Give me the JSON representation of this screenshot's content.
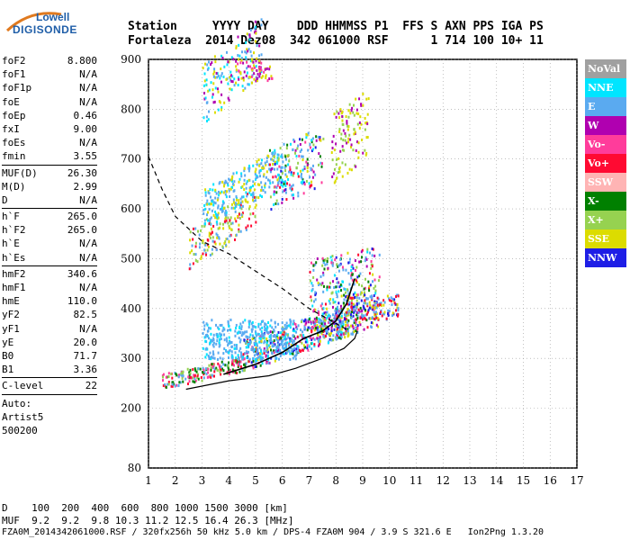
{
  "logo": {
    "line1": "Lowell",
    "line2": "DIGISONDE"
  },
  "header": {
    "row1": "Station     YYYY DAY    DDD HHMMSS P1  FFS S AXN PPS IGA PS",
    "row2": "Fortaleza  2014 Dez08  342 061000 RSF      1 714 100 10+ 11"
  },
  "params_group1": [
    {
      "k": "foF2",
      "v": "8.800"
    },
    {
      "k": "foF1",
      "v": "N/A"
    },
    {
      "k": "foF1p",
      "v": "N/A"
    },
    {
      "k": "foE",
      "v": "N/A"
    },
    {
      "k": "foEp",
      "v": "0.46"
    },
    {
      "k": "fxI",
      "v": "9.00"
    },
    {
      "k": "foEs",
      "v": "N/A"
    },
    {
      "k": "fmin",
      "v": "3.55"
    }
  ],
  "params_group2": [
    {
      "k": "MUF(D)",
      "v": "26.30"
    },
    {
      "k": "M(D)",
      "v": "2.99"
    },
    {
      "k": "D",
      "v": "N/A"
    }
  ],
  "params_group3": [
    {
      "k": "h`F",
      "v": "265.0"
    },
    {
      "k": "h`F2",
      "v": "265.0"
    },
    {
      "k": "h`E",
      "v": "N/A"
    },
    {
      "k": "h`Es",
      "v": "N/A"
    }
  ],
  "params_group4": [
    {
      "k": "hmF2",
      "v": "340.6"
    },
    {
      "k": "hmF1",
      "v": "N/A"
    },
    {
      "k": "hmE",
      "v": "110.0"
    },
    {
      "k": "yF2",
      "v": "82.5"
    },
    {
      "k": "yF1",
      "v": "N/A"
    },
    {
      "k": "yE",
      "v": "20.0"
    },
    {
      "k": "B0",
      "v": "71.7"
    },
    {
      "k": "B1",
      "v": "3.36"
    }
  ],
  "params_group5": [
    {
      "k": "C-level",
      "v": "22"
    }
  ],
  "auto": {
    "line1": "Auto:",
    "line2": "Artist5",
    "line3": "500200"
  },
  "legend": [
    {
      "label": "NoVal",
      "color": "#a0a0a0"
    },
    {
      "label": "NNE",
      "color": "#00e5ff"
    },
    {
      "label": "E",
      "color": "#5aaaf0"
    },
    {
      "label": "W",
      "color": "#b000b0"
    },
    {
      "label": "Vo-",
      "color": "#ff3c9b"
    },
    {
      "label": "Vo+",
      "color": "#ff0a32"
    },
    {
      "label": "SSW",
      "color": "#ffb4b4"
    },
    {
      "label": "X-",
      "color": "#008000"
    },
    {
      "label": "X+",
      "color": "#96d250"
    },
    {
      "label": "SSE",
      "color": "#dcdc00"
    },
    {
      "label": "NNW",
      "color": "#1e1ee6"
    }
  ],
  "bottom": {
    "line1": "D    100  200  400  600  800 1000 1500 3000 [km]",
    "line2": "MUF  9.2  9.2  9.8 10.3 11.2 12.5 16.4 26.3 [MHz]",
    "line3": "FZA0M_2014342061000.RSF / 320fx256h 50 kHz 5.0 km / DPS-4 FZA0M 904 / 3.9 S 321.6 E   Ion2Png 1.3.20"
  },
  "chart_data": {
    "type": "scatter",
    "xlim": [
      1,
      17
    ],
    "ylim": [
      80,
      900
    ],
    "x_ticks": [
      "1",
      "2",
      "3",
      "4",
      "5",
      "6",
      "7",
      "8",
      "9",
      "10",
      "11",
      "12",
      "13",
      "14",
      "15",
      "16",
      "17"
    ],
    "y_ticks": [
      "80",
      "200",
      "300",
      "400",
      "500",
      "600",
      "700",
      "800",
      "900"
    ],
    "y_tick_values": [
      80,
      200,
      300,
      400,
      500,
      600,
      700,
      800,
      900
    ],
    "grid": true,
    "profile_curve": {
      "name": "",
      "x": [
        2.4,
        4.0,
        5.5,
        6.5,
        7.5,
        8.3,
        8.7,
        8.8
      ],
      "y": [
        238,
        255,
        265,
        280,
        300,
        320,
        340,
        355
      ]
    },
    "extraordinary_curve": {
      "name": "",
      "x": [
        1.0,
        1.5,
        2.0,
        3.0,
        4.0,
        5.0,
        6.0,
        7.0,
        8.0,
        8.5
      ],
      "y": [
        705,
        640,
        585,
        535,
        510,
        475,
        440,
        400,
        370,
        355
      ]
    },
    "trace_fit": {
      "name": "",
      "x": [
        3.8,
        5.0,
        6.0,
        6.8,
        7.5,
        8.0,
        8.4,
        8.7
      ],
      "y": [
        268,
        288,
        312,
        340,
        355,
        375,
        410,
        460
      ]
    }
  }
}
